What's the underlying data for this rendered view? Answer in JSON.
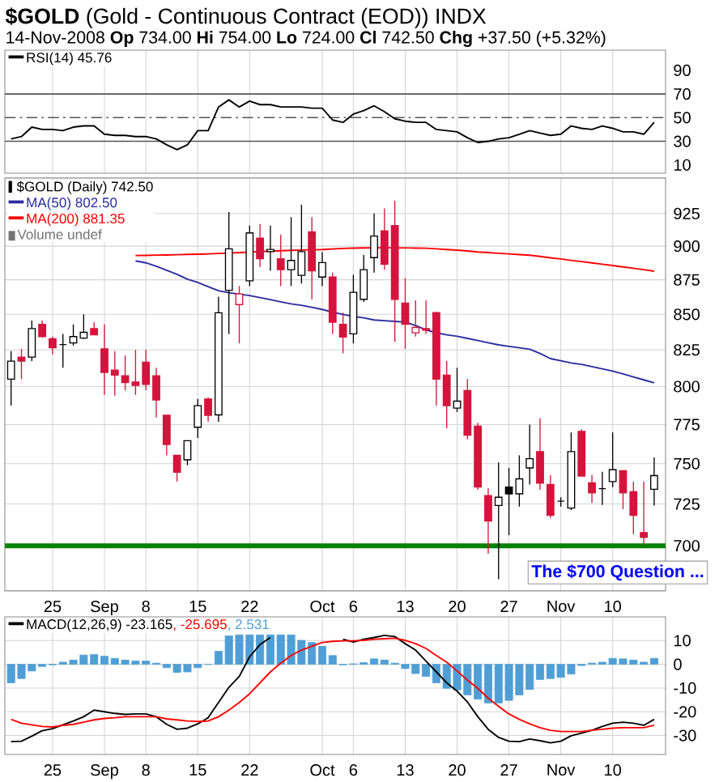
{
  "chart_data": [
    {
      "type": "line",
      "title": "**$GOLD** (Gold - Continuous Contract (EOD)) INDX",
      "subtitle": "14-Nov-2008 **Op** 734.00 **Hi** 754.00 **Lo** 724.00 **Cl** 742.50 **Chg** +37.50 (+5.32%)",
      "categories": [
        null,
        null,
        null,
        null,
        null,
        null,
        null,
        null,
        null,
        null,
        null,
        null,
        null,
        null,
        null,
        null,
        null,
        null,
        null,
        null,
        null,
        null,
        null,
        null,
        null,
        null,
        null,
        null,
        null,
        null,
        null,
        null,
        null,
        null,
        null,
        null,
        null,
        null,
        null,
        null,
        null,
        null,
        null,
        null,
        null,
        null,
        null,
        null,
        null,
        null,
        null,
        null,
        null,
        null,
        null,
        null,
        null,
        null,
        null,
        null,
        null,
        null,
        null
      ],
      "series": [
        {
          "name": "RSI(14) 45.76",
          "color": "#000000",
          "values": [
            32,
            34,
            42,
            40,
            40,
            39,
            42,
            43,
            43,
            36,
            35,
            35,
            34,
            34,
            32,
            27,
            23,
            27,
            39,
            39,
            59,
            65,
            59,
            64,
            61,
            61,
            59,
            59,
            59,
            58,
            58,
            48,
            46,
            53,
            56,
            60,
            55,
            49,
            47,
            46,
            46,
            40,
            39,
            38,
            33,
            29,
            30,
            32,
            33,
            36,
            39,
            37,
            35,
            36,
            43,
            41,
            40,
            43,
            41,
            38,
            38,
            36,
            46
          ]
        }
      ],
      "ylim": [
        3,
        107
      ],
      "yticks": [
        10,
        30,
        50,
        70,
        90
      ],
      "grid": "x",
      "tick_labels": "y",
      "legend": "top left",
      "ref_lines": [
        {
          "axis": "y",
          "value": 70,
          "color": "#555555"
        },
        {
          "axis": "y",
          "value": 30,
          "color": "#555555"
        },
        {
          "axis": "y",
          "value": 50,
          "color": "#555555",
          "line_style": "dashed"
        }
      ]
    },
    {
      "type": "candlestick",
      "log": "y",
      "categories": [
        null,
        null,
        null,
        null,
        "25",
        null,
        null,
        null,
        null,
        "Sep",
        null,
        null,
        null,
        "8",
        null,
        null,
        null,
        null,
        "15",
        null,
        null,
        null,
        null,
        "22",
        null,
        null,
        null,
        null,
        null,
        null,
        "Oct",
        null,
        null,
        "6",
        null,
        null,
        null,
        null,
        "13",
        null,
        null,
        null,
        null,
        "20",
        null,
        null,
        null,
        null,
        "27",
        null,
        null,
        null,
        null,
        "Nov",
        null,
        null,
        null,
        null,
        "10",
        null,
        null,
        null,
        null
      ],
      "series": [
        {
          "name": "$GOLD (Daily) 742.50",
          "type": "candlestick",
          "ohlc": [
            [
              805,
              824.2,
              787.5,
              817.3
            ],
            [
              820,
              825.7,
              805,
              817.3
            ],
            [
              820,
              845.5,
              817.3,
              839.9
            ],
            [
              842.9,
              845.5,
              833.6,
              834.3
            ],
            [
              832.8,
              834.3,
              821.9,
              826.5
            ],
            [
              828.7,
              836.2,
              812.7,
              828.7
            ],
            [
              829.8,
              842.9,
              827.9,
              834.3
            ],
            [
              833.2,
              850,
              832.5,
              837.3
            ],
            [
              839.9,
              844.4,
              835.5,
              835.5
            ],
            [
              825.7,
              842.9,
              794.6,
              809.6
            ],
            [
              811.2,
              824.2,
              793.9,
              807.7
            ],
            [
              807.3,
              821.2,
              797.5,
              802.7
            ],
            [
              803.1,
              825,
              794.6,
              800.8
            ],
            [
              816.6,
              825,
              797.5,
              801.5
            ],
            [
              807.3,
              812.7,
              779.6,
              791.1
            ],
            [
              781.1,
              781.1,
              755.2,
              762.2
            ],
            [
              755.2,
              755.2,
              738.7,
              744.5
            ],
            [
              752.4,
              764.6,
              749,
              764.6
            ],
            [
              773.3,
              791.8,
              766.3,
              787.5
            ],
            [
              791.8,
              792.9,
              776.8,
              781.1
            ],
            [
              781.4,
              862.7,
              776.8,
              851.1
            ],
            [
              867.3,
              926.2,
              836.2,
              898
            ],
            [
              857,
              870.4,
              829.5,
              864.7
            ],
            [
              874.2,
              915.7,
              870.4,
              910.1
            ],
            [
              906.1,
              916.9,
              884.5,
              890.6
            ],
            [
              895.9,
              915.7,
              881.6,
              897.6
            ],
            [
              890.6,
              908.9,
              870.4,
              882.4
            ],
            [
              882.4,
              922.2,
              870.4,
              889.3
            ],
            [
              878.3,
              931.9,
              872.3,
              895.9
            ],
            [
              910.9,
              922.2,
              860.8,
              881.6
            ],
            [
              877,
              895.5,
              870.4,
              887.7
            ],
            [
              877,
              880.3,
              836.2,
              844.4
            ],
            [
              842.9,
              851.2,
              822.7,
              834
            ],
            [
              836.2,
              878.7,
              829.5,
              865.8
            ],
            [
              860.8,
              893.4,
              858.9,
              882.4
            ],
            [
              891.4,
              925,
              880.3,
              907.7
            ],
            [
              911.7,
              929,
              882.4,
              886.5
            ],
            [
              915.7,
              935,
              830.6,
              860.8
            ],
            [
              858.1,
              876.2,
              825.7,
              842.9
            ],
            [
              836.9,
              860,
              834.3,
              840.7
            ],
            [
              839.9,
              860,
              836.2,
              838.8
            ],
            [
              851.2,
              851.9,
              787.5,
              805
            ],
            [
              807.7,
              817.3,
              772.6,
              787.5
            ],
            [
              785.7,
              812.7,
              783.2,
              790.4
            ],
            [
              797.5,
              805,
              765.6,
              768.1
            ],
            [
              774,
              776.1,
              733.6,
              735.3
            ],
            [
              730.1,
              734.6,
              695.3,
              714.7
            ],
            [
              724.1,
              750.7,
              680.6,
              729.1
            ],
            [
              735.3,
              747.3,
              706.3,
              731.2
            ],
            [
              731.2,
              755.2,
              723.4,
              740.4
            ],
            [
              747.3,
              775,
              737,
              753.1
            ],
            [
              757.6,
              779.2,
              733.6,
              737.7
            ],
            [
              737,
              742.8,
              716.6,
              718.1
            ],
            [
              726.7,
              729.1,
              723.4,
              726.7
            ],
            [
              722.5,
              769.8,
              721.3,
              757.6
            ],
            [
              770.5,
              772,
              742.1,
              742.1
            ],
            [
              738.1,
              742.8,
              725.7,
              731.8
            ],
            [
              734.3,
              744.9,
              724.4,
              734.3
            ],
            [
              738.7,
              769.8,
              735.3,
              746.2
            ],
            [
              745.6,
              745.6,
              721.9,
              731.8
            ],
            [
              732.5,
              738.7,
              706.9,
              718.1
            ],
            [
              707.8,
              738.7,
              700.6,
              705
            ],
            [
              734,
              754,
              724,
              742.5
            ]
          ],
          "colors": [
            "#000000",
            "#d4143c",
            "#000000",
            "#d4143c",
            "#d4143c",
            "#000000",
            "#000000",
            "#000000",
            "#d4143c",
            "#d4143c",
            "#d4143c",
            "#d4143c",
            "#d4143c",
            "#d4143c",
            "#d4143c",
            "#d4143c",
            "#d4143c",
            "#000000",
            "#000000",
            "#d4143c",
            "#000000",
            "#000000",
            "#d4143c",
            "#000000",
            "#d4143c",
            "#000000",
            "#d4143c",
            "#000000",
            "#000000",
            "#d4143c",
            "#000000",
            "#d4143c",
            "#d4143c",
            "#000000",
            "#000000",
            "#000000",
            "#d4143c",
            "#d4143c",
            "#d4143c",
            "#d4143c",
            "#d4143c",
            "#d4143c",
            "#d4143c",
            "#000000",
            "#d4143c",
            "#d4143c",
            "#d4143c",
            "#000000",
            "#000000",
            "#000000",
            "#000000",
            "#d4143c",
            "#d4143c",
            "#000000",
            "#000000",
            "#d4143c",
            "#d4143c",
            "#000000",
            "#000000",
            "#d4143c",
            "#d4143c",
            "#d4143c",
            "#000000"
          ]
        },
        {
          "name": "MA(50) 802.50",
          "type": "line",
          "color": "#2a2aa0",
          "values": [
            null,
            null,
            null,
            null,
            null,
            null,
            null,
            null,
            null,
            null,
            null,
            null,
            889,
            887.5,
            885,
            882,
            879,
            875.5,
            873,
            870,
            867,
            865.5,
            864.5,
            863.5,
            862,
            860.5,
            859,
            857.5,
            856.5,
            855,
            853.5,
            851.5,
            850,
            848.5,
            847.5,
            846,
            845.5,
            845,
            844.5,
            842,
            839,
            837,
            835.5,
            834.5,
            833,
            831.5,
            830,
            828.5,
            827.5,
            826.5,
            825.5,
            822.5,
            819,
            817.5,
            816,
            815,
            813.5,
            812,
            810.5,
            808.5,
            806.5,
            804.5,
            802.5
          ]
        },
        {
          "name": "MA(200) 881.35",
          "type": "line",
          "color": "#ff0000",
          "values": [
            null,
            null,
            null,
            null,
            null,
            null,
            null,
            null,
            null,
            null,
            null,
            null,
            893,
            893.1,
            893.3,
            893.4,
            893.6,
            893.8,
            894,
            894.2,
            894.5,
            894.8,
            895.2,
            895.6,
            896,
            896.3,
            896.6,
            896.9,
            897.1,
            897.3,
            897.5,
            897.9,
            898.3,
            898.6,
            898.7,
            898.8,
            898.8,
            898.8,
            898.7,
            898.6,
            898.5,
            898,
            897.5,
            897,
            896.4,
            895.7,
            895.2,
            894.7,
            894.2,
            893.7,
            893.2,
            892.3,
            891.3,
            890.4,
            889.4,
            888.5,
            887.5,
            886.5,
            885.5,
            884.5,
            883.5,
            882.4,
            881.35
          ]
        }
      ],
      "ylim": [
        674,
        953
      ],
      "yticks": [
        700,
        725,
        750,
        775,
        800,
        825,
        850,
        875,
        900,
        925
      ],
      "grid": true,
      "legend": "top left",
      "ref_lines": [
        {
          "axis": "y",
          "value": 700,
          "color": "#008000"
        }
      ],
      "annotations": [
        "Volume undef",
        "The $700 Question ..."
      ]
    },
    {
      "type": "line",
      "categories": [
        null,
        null,
        null,
        null,
        "25",
        null,
        null,
        null,
        null,
        "Sep",
        null,
        null,
        null,
        "8",
        null,
        null,
        null,
        null,
        "15",
        null,
        null,
        null,
        null,
        "22",
        null,
        null,
        null,
        null,
        null,
        null,
        "Oct",
        null,
        null,
        "6",
        null,
        null,
        null,
        null,
        "13",
        null,
        null,
        null,
        null,
        "20",
        null,
        null,
        null,
        null,
        "27",
        null,
        null,
        null,
        null,
        "Nov",
        null,
        null,
        null,
        null,
        "10",
        null,
        null,
        null,
        null
      ],
      "series": [
        {
          "name": "MACD(12,26,9) -23.165",
          "type": "line",
          "color": "#000000",
          "values": [
            -32.6,
            -32.4,
            -30.3,
            -28,
            -27.1,
            -25.5,
            -23.9,
            -22.1,
            -19.3,
            -20,
            -20.7,
            -21.1,
            -20.9,
            -20.9,
            -22.1,
            -25.3,
            -27.4,
            -26.9,
            -25.1,
            -22.5,
            -16.1,
            -9.7,
            -5.1,
            3.2,
            8.3,
            11.3,
            null,
            null,
            null,
            null,
            null,
            null,
            10.6,
            9.4,
            10.6,
            11.3,
            12.2,
            11.7,
            8.7,
            6,
            1.4,
            -3.2,
            -7.8,
            -11.3,
            -15.9,
            -22.1,
            -27.4,
            -30.8,
            -32.4,
            -32.6,
            -31.5,
            -32.2,
            -33.1,
            -32.4,
            -30.1,
            -29,
            -27.8,
            -26.2,
            -24.8,
            -24.4,
            -24.8,
            -25.7,
            -23.2
          ]
        },
        {
          "name": ", -25.695",
          "type": "line",
          "color": "#ff0000",
          "values": [
            -23.2,
            -24.8,
            -25.5,
            -26.2,
            -26.4,
            -25.7,
            -25.3,
            -24.4,
            -23.4,
            -22.8,
            -22.5,
            -22.1,
            -22.1,
            -22.1,
            -22.1,
            -23,
            -23.4,
            -23.9,
            -24.1,
            -23.9,
            -22.1,
            -19.3,
            -16.1,
            -12.4,
            -7.8,
            -3.2,
            0.5,
            3.7,
            6,
            7.6,
            9.2,
            9.7,
            9.9,
            9.9,
            10.1,
            10.6,
            10.8,
            11,
            10.1,
            8.7,
            6.7,
            3.7,
            0.9,
            -2.8,
            -6.7,
            -10.1,
            -14.3,
            -17.7,
            -20.9,
            -23.2,
            -25.1,
            -26.7,
            -27.8,
            -28.3,
            -28.3,
            -28.3,
            -27.8,
            -27.4,
            -26.9,
            -26.7,
            -26.7,
            -26.7,
            -25.7
          ]
        },
        {
          "name": ", 2.531",
          "type": "bar",
          "color": "#4f9fd6",
          "values": [
            -7.8,
            -6,
            -2.8,
            -0.9,
            -0.2,
            0.9,
            1.8,
            3.9,
            4.1,
            3.4,
            2.5,
            1.8,
            1.4,
            1.4,
            0.5,
            -1.4,
            -3.4,
            -3.2,
            -1.4,
            0,
            5.5,
            12,
            12.4,
            12.4,
            12.4,
            12.4,
            12.4,
            12.4,
            10.1,
            9.2,
            7.6,
            3.7,
            -0.2,
            0.2,
            0.7,
            2.3,
            1.8,
            0.5,
            -1.8,
            -3.9,
            -5.1,
            -7.8,
            -10.1,
            -10.8,
            -12.9,
            -14.7,
            -16.3,
            -16.3,
            -15.2,
            -12.9,
            -10.6,
            -6.4,
            -6,
            -5.5,
            -4.1,
            -0.5,
            0.5,
            0.9,
            2.5,
            2.3,
            1.8,
            0.9,
            2.5
          ]
        }
      ],
      "ylim": [
        -38,
        20
      ],
      "yticks": [
        -30,
        -20,
        -10,
        0,
        10
      ],
      "grid": true,
      "legend": "top left"
    }
  ]
}
